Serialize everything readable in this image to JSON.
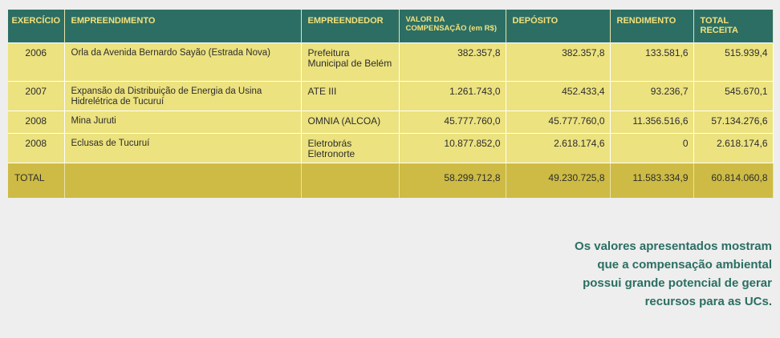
{
  "table": {
    "headers": [
      "EXERCÍCIO",
      "EMPREENDIMENTO",
      "EMPREENDEDOR",
      "VALOR DA COMPENSAÇÃO (em R$)",
      "DEPÓSITO",
      "RENDIMENTO",
      "TOTAL RECEITA"
    ],
    "rows": [
      [
        "2006",
        "Orla da Avenida Bernardo Sayão (Estrada Nova)",
        "Prefeitura Municipal de Belém",
        "382.357,8",
        "382.357,8",
        "133.581,6",
        "515.939,4"
      ],
      [
        "2007",
        "Expansão da Distribuição de Energia da Usina Hidrelétrica de Tucuruí",
        "ATE III",
        "1.261.743,0",
        "452.433,4",
        "93.236,7",
        "545.670,1"
      ],
      [
        "2008",
        "Mina Juruti",
        "OMNIA (ALCOA)",
        "45.777.760,0",
        "45.777.760,0",
        "11.356.516,6",
        "57.134.276,6"
      ],
      [
        "2008",
        "Eclusas de Tucuruí",
        "Eletrobrás Eletronorte",
        "10.877.852,0",
        "2.618.174,6",
        "0",
        "2.618.174,6"
      ]
    ],
    "total": [
      "TOTAL",
      "",
      "",
      "58.299.712,8",
      "49.230.725,8",
      "11.583.334,9",
      "60.814.060,8"
    ]
  },
  "note": "Os valores apresentados mostram que a compensação ambiental possui grande potencial de gerar recursos para as UCs.",
  "colors": {
    "header_bg": "#2c6e64",
    "header_text": "#f4e17a",
    "row_bg": "#ece27f",
    "total_bg": "#cdbb45",
    "note_text": "#2b6e63"
  }
}
